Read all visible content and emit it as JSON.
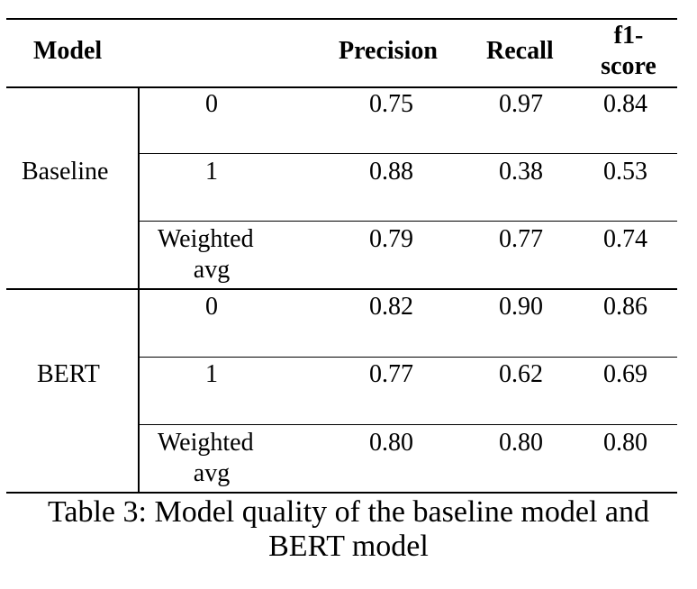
{
  "table": {
    "headers": {
      "model": "Model",
      "precision": "Precision",
      "recall": "Recall",
      "f1_line1": "f1-",
      "f1_line2": "score"
    },
    "groups": [
      {
        "model": "Baseline",
        "rows": [
          {
            "class_line1": "0",
            "class_line2": "",
            "precision": "0.75",
            "recall": "0.97",
            "f1": "0.84"
          },
          {
            "class_line1": "1",
            "class_line2": "",
            "precision": "0.88",
            "recall": "0.38",
            "f1": "0.53"
          },
          {
            "class_line1": "Weighted",
            "class_line2": "avg",
            "precision": "0.79",
            "recall": "0.77",
            "f1": "0.74"
          }
        ]
      },
      {
        "model": "BERT",
        "rows": [
          {
            "class_line1": "0",
            "class_line2": "",
            "precision": "0.82",
            "recall": "0.90",
            "f1": "0.86"
          },
          {
            "class_line1": "1",
            "class_line2": "",
            "precision": "0.77",
            "recall": "0.62",
            "f1": "0.69"
          },
          {
            "class_line1": "Weighted",
            "class_line2": "avg",
            "precision": "0.80",
            "recall": "0.80",
            "f1": "0.80"
          }
        ]
      }
    ]
  },
  "caption": {
    "line1": "Table 3: Model quality of the baseline model and",
    "line2": "BERT model"
  }
}
